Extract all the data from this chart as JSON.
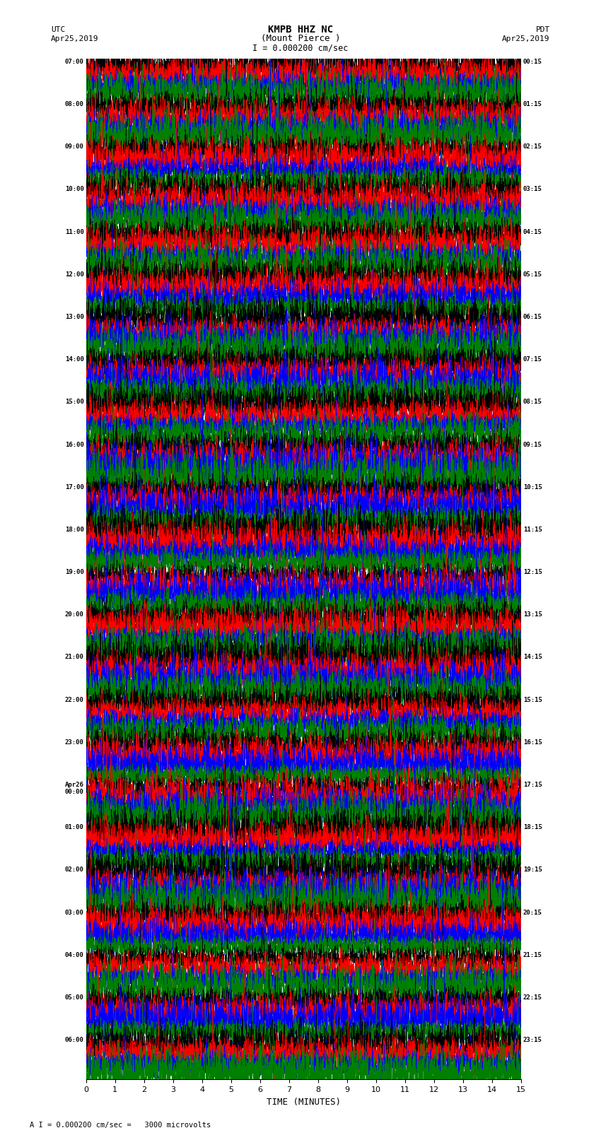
{
  "title_line1": "KMPB HHZ NC",
  "title_line2": "(Mount Pierce )",
  "scale_label": "I = 0.000200 cm/sec",
  "footer_label": "A I = 0.000200 cm/sec =   3000 microvolts",
  "xlabel": "TIME (MINUTES)",
  "ylabel_left": "UTC",
  "ylabel_right": "PDT",
  "date_left": "Apr25,2019",
  "date_right": "Apr25,2019",
  "x_min": 0,
  "x_max": 15,
  "x_ticks": [
    0,
    1,
    2,
    3,
    4,
    5,
    6,
    7,
    8,
    9,
    10,
    11,
    12,
    13,
    14,
    15
  ],
  "left_times": [
    "07:00",
    "08:00",
    "09:00",
    "10:00",
    "11:00",
    "12:00",
    "13:00",
    "14:00",
    "15:00",
    "16:00",
    "17:00",
    "18:00",
    "19:00",
    "20:00",
    "21:00",
    "22:00",
    "23:00",
    "Apr26\n00:00",
    "01:00",
    "02:00",
    "03:00",
    "04:00",
    "05:00",
    "06:00"
  ],
  "right_times": [
    "00:15",
    "01:15",
    "02:15",
    "03:15",
    "04:15",
    "05:15",
    "06:15",
    "07:15",
    "08:15",
    "09:15",
    "10:15",
    "11:15",
    "12:15",
    "13:15",
    "14:15",
    "15:15",
    "16:15",
    "17:15",
    "18:15",
    "19:15",
    "20:15",
    "21:15",
    "22:15",
    "23:15"
  ],
  "n_rows": 24,
  "traces_per_row": 4,
  "bg_color": "#ffffff",
  "trace_color": [
    "#000000",
    "#ff0000",
    "#0000ff",
    "#008000"
  ],
  "fig_width": 8.5,
  "fig_height": 16.13,
  "noise_seed": 42
}
